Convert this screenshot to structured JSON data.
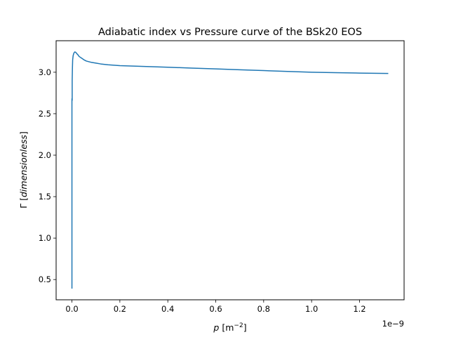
{
  "chart_data": {
    "type": "line",
    "title": "Adiabatic index vs Pressure curve of the BSk20 EOS",
    "xlabel": {
      "main": "p",
      "unit_prefix": "[m",
      "unit_exp": "−2",
      "unit_suffix": "]"
    },
    "ylabel": {
      "main": "Γ",
      "unit_prefix": "[",
      "unit_italic": "dimensionless",
      "unit_suffix": "]"
    },
    "x_offset_label": "1e−9",
    "x_scale_factor": 1e-09,
    "xlim": [
      -0.066,
      1.386
    ],
    "ylim": [
      0.256,
      3.38
    ],
    "xticks": [
      {
        "value": 0.0,
        "label": "0.0"
      },
      {
        "value": 0.2,
        "label": "0.2"
      },
      {
        "value": 0.4,
        "label": "0.4"
      },
      {
        "value": 0.6,
        "label": "0.6"
      },
      {
        "value": 0.8,
        "label": "0.8"
      },
      {
        "value": 1.0,
        "label": "1.0"
      },
      {
        "value": 1.2,
        "label": "1.2"
      }
    ],
    "yticks": [
      {
        "value": 0.5,
        "label": "0.5"
      },
      {
        "value": 1.0,
        "label": "1.0"
      },
      {
        "value": 1.5,
        "label": "1.5"
      },
      {
        "value": 2.0,
        "label": "2.0"
      },
      {
        "value": 2.5,
        "label": "2.5"
      },
      {
        "value": 3.0,
        "label": "3.0"
      }
    ],
    "grid": false,
    "series_color": "#1f77b4",
    "series": [
      {
        "x": [
          0.0,
          0.0,
          0.0,
          0.0,
          0.0,
          0.0,
          0.0,
          0.0,
          0.001,
          0.001,
          0.002,
          0.003,
          0.005,
          0.008,
          0.012,
          0.016,
          0.02,
          0.025,
          0.03,
          0.04,
          0.05,
          0.06,
          0.08,
          0.1,
          0.12,
          0.15,
          0.2,
          0.3,
          0.4,
          0.5,
          0.6,
          0.7,
          0.8,
          0.9,
          1.0,
          1.1,
          1.2,
          1.32
        ],
        "y": [
          0.39,
          0.6,
          1.0,
          1.55,
          1.56,
          1.54,
          2.2,
          2.68,
          2.66,
          2.9,
          3.05,
          3.15,
          3.2,
          3.23,
          3.245,
          3.24,
          3.225,
          3.21,
          3.19,
          3.17,
          3.15,
          3.135,
          3.12,
          3.11,
          3.1,
          3.09,
          3.08,
          3.07,
          3.06,
          3.05,
          3.04,
          3.03,
          3.02,
          3.01,
          3.0,
          2.995,
          2.99,
          2.985
        ]
      }
    ]
  }
}
